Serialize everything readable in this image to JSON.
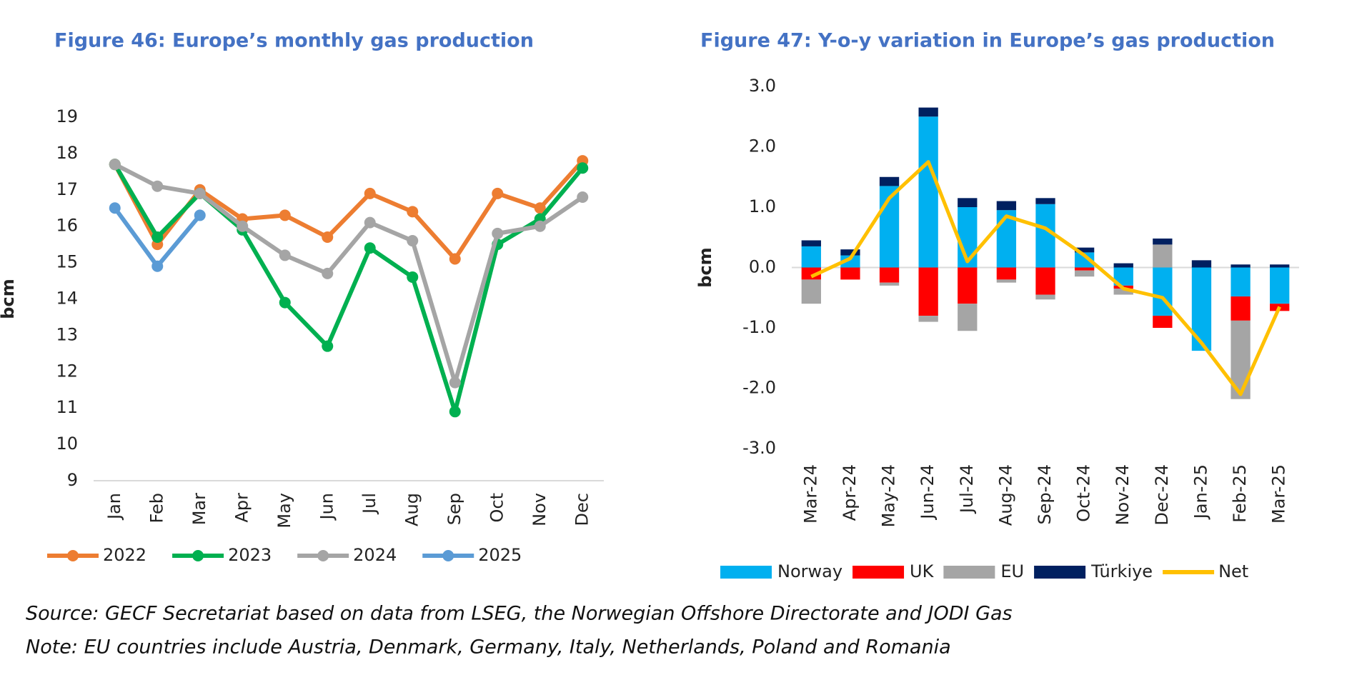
{
  "chart_data": [
    {
      "type": "line",
      "title": "Figure 46: Europe’s monthly gas production",
      "y_label": "bcm",
      "categories": [
        "Jan",
        "Feb",
        "Mar",
        "Apr",
        "May",
        "Jun",
        "Jul",
        "Aug",
        "Sep",
        "Oct",
        "Nov",
        "Dec"
      ],
      "series": [
        {
          "name": "2022",
          "color": "#ED7D31",
          "values": [
            17.7,
            15.5,
            17.0,
            16.2,
            16.3,
            15.7,
            16.9,
            16.4,
            15.1,
            16.9,
            16.5,
            17.8
          ]
        },
        {
          "name": "2023",
          "color": "#00B050",
          "values": [
            17.7,
            15.7,
            16.9,
            15.9,
            13.9,
            12.7,
            15.4,
            14.6,
            10.9,
            15.5,
            16.2,
            17.6
          ]
        },
        {
          "name": "2024",
          "color": "#A5A5A5",
          "values": [
            17.7,
            17.1,
            16.9,
            16.0,
            15.2,
            14.7,
            16.1,
            15.6,
            11.7,
            15.8,
            16.0,
            16.8
          ]
        },
        {
          "name": "2025",
          "color": "#5B9BD5",
          "values": [
            16.5,
            14.9,
            16.3,
            null,
            null,
            null,
            null,
            null,
            null,
            null,
            null,
            null
          ]
        }
      ],
      "ylim": [
        9,
        19
      ],
      "yticks": [
        9,
        10,
        11,
        12,
        13,
        14,
        15,
        16,
        17,
        18,
        19
      ],
      "grid": false,
      "legend": "bottom"
    },
    {
      "type": "bar",
      "stacked": true,
      "title": "Figure 47: Y-o-y variation in Europe’s gas production",
      "y_label": "bcm",
      "categories": [
        "Mar-24",
        "Apr-24",
        "May-24",
        "Jun-24",
        "Jul-24",
        "Aug-24",
        "Sep-24",
        "Oct-24",
        "Nov-24",
        "Dec-24",
        "Jan-25",
        "Feb-25",
        "Mar-25"
      ],
      "series": [
        {
          "name": "Norway",
          "color": "#00B0F0",
          "values": [
            0.35,
            0.2,
            1.35,
            2.5,
            1.0,
            0.95,
            1.05,
            0.25,
            -0.3,
            -0.8,
            -1.38,
            -0.48,
            -0.6
          ]
        },
        {
          "name": "UK",
          "color": "#FF0000",
          "values": [
            -0.2,
            -0.2,
            -0.25,
            -0.8,
            -0.6,
            -0.2,
            -0.45,
            -0.05,
            -0.05,
            -0.2,
            0,
            -0.4,
            -0.12
          ]
        },
        {
          "name": "EU",
          "color": "#A5A5A5",
          "values": [
            -0.4,
            0,
            -0.05,
            -0.1,
            -0.45,
            -0.05,
            -0.08,
            -0.1,
            -0.1,
            0.38,
            0,
            -1.3,
            0
          ]
        },
        {
          "name": "Türkiye",
          "color": "#002060",
          "values": [
            0.1,
            0.1,
            0.15,
            0.15,
            0.15,
            0.15,
            0.1,
            0.08,
            0.07,
            0.1,
            0.12,
            0.05,
            0.05
          ]
        },
        {
          "name": "Net",
          "color": "#FFC000",
          "type": "line",
          "values": [
            -0.15,
            0.15,
            1.15,
            1.75,
            0.1,
            0.85,
            0.65,
            0.2,
            -0.35,
            -0.5,
            -1.25,
            -2.1,
            -0.65
          ]
        }
      ],
      "ylim": [
        -3,
        3
      ],
      "yticks": [
        {
          "value": -3,
          "label": "-3.0"
        },
        {
          "value": -2,
          "label": "-2.0"
        },
        {
          "value": -1,
          "label": "-1.0"
        },
        {
          "value": 0,
          "label": "0.0"
        },
        {
          "value": 1,
          "label": "1.0"
        },
        {
          "value": 2,
          "label": "2.0"
        },
        {
          "value": 3,
          "label": "3.0"
        }
      ],
      "grid": false,
      "legend": "bottom"
    }
  ],
  "source": "Source: GECF Secretariat based on data from LSEG, the Norwegian Offshore Directorate and JODI Gas",
  "note": "Note: EU countries include Austria, Denmark, Germany, Italy, Netherlands, Poland and Romania"
}
